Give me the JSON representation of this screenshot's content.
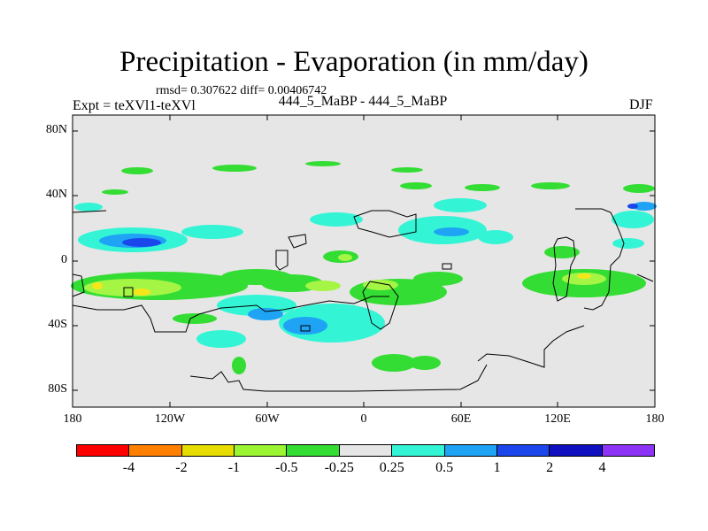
{
  "header": {
    "title": "Precipitation - Evaporation (in mm/day)",
    "stats": "rmsd= 0.307622  diff= 0.00406742",
    "experiment": "Expt = teXVl1-teXVl",
    "center_label": "444_5_MaBP - 444_5_MaBP",
    "season": "DJF"
  },
  "axes": {
    "y_ticks": [
      "80N",
      "40N",
      "0",
      "40S",
      "80S"
    ],
    "x_ticks": [
      "180",
      "120W",
      "60W",
      "0",
      "60E",
      "120E",
      "180"
    ]
  },
  "colors": {
    "background_field": "#e6e6e6",
    "green": "#33dd33",
    "light_green": "#a5f545",
    "yellow_green": "#f5e61a",
    "cyan": "#33f5d6",
    "light_blue": "#1ea3f5",
    "blue": "#1a46eb"
  },
  "colorbar": {
    "swatches": [
      "#ff0000",
      "#ff8000",
      "#e6dc00",
      "#9bf533",
      "#33dd33",
      "#e6e6e6",
      "#33f5d6",
      "#1ea3f5",
      "#1a46eb",
      "#1010c0",
      "#8c33f5"
    ],
    "labels": [
      "-4",
      "-2",
      "-1",
      "-0.5",
      "-0.25",
      "0.25",
      "0.5",
      "1",
      "2",
      "4"
    ]
  }
}
